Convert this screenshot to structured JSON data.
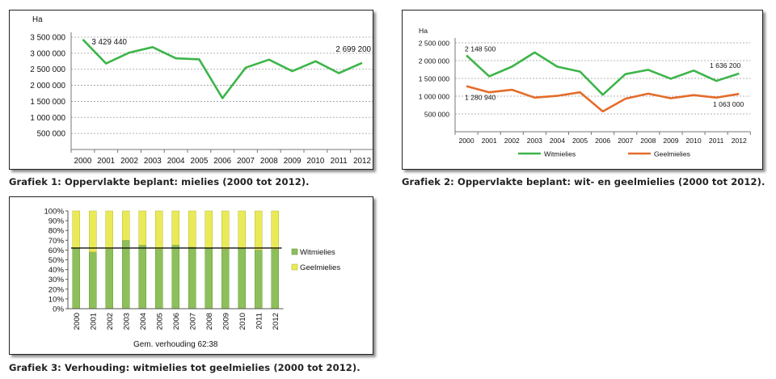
{
  "captions": {
    "c1": "Grafiek 1: Oppervlakte beplant: mielies (2000 tot 2012).",
    "c2": "Grafiek 2: Oppervlakte beplant: wit- en geelmielies (2000 tot 2012).",
    "c3": "Grafiek 3: Verhouding: witmielies tot geelmielies (2000 tot 2012)."
  },
  "colors": {
    "green": "#3db54a",
    "orange": "#e46c2a",
    "bar_green": "#8dbf5a",
    "bar_yellow": "#eaea58",
    "grid": "#9a9a9a"
  },
  "chart_data": [
    {
      "type": "line",
      "ylabel": "Ha",
      "x": [
        "2000",
        "2001",
        "2002",
        "2003",
        "2004",
        "2005",
        "2006",
        "2007",
        "2008",
        "2009",
        "2010",
        "2011",
        "2012"
      ],
      "ylim": [
        0,
        3500000
      ],
      "yticks": [
        "500 000",
        "1 000 000",
        "1 500 000",
        "2 000 000",
        "2 500 000",
        "3 000 000",
        "3 500 000"
      ],
      "series": [
        {
          "values": [
            3429440,
            2680000,
            3020000,
            3190000,
            2840000,
            2810000,
            1600000,
            2550000,
            2800000,
            2440000,
            2750000,
            2380000,
            2699200
          ]
        }
      ],
      "annotations": [
        {
          "text": "3 429 440",
          "index": 0
        },
        {
          "text": "2 699 200",
          "index": 12
        }
      ]
    },
    {
      "type": "line",
      "ylabel": "Ha",
      "x": [
        "2000",
        "2001",
        "2002",
        "2003",
        "2004",
        "2005",
        "2006",
        "2007",
        "2008",
        "2009",
        "2010",
        "2011",
        "2012"
      ],
      "ylim": [
        0,
        2500000
      ],
      "yticks": [
        "500 000",
        "1 000 000",
        "1 500 000",
        "2 000 000",
        "2 500 000"
      ],
      "legend": "bottom",
      "series": [
        {
          "name": "Witmielies",
          "values": [
            2148500,
            1560000,
            1830000,
            2230000,
            1830000,
            1690000,
            1040000,
            1620000,
            1740000,
            1490000,
            1720000,
            1430000,
            1636200
          ]
        },
        {
          "name": "Geelmielies",
          "values": [
            1280940,
            1110000,
            1180000,
            960000,
            1010000,
            1110000,
            570000,
            930000,
            1070000,
            940000,
            1030000,
            960000,
            1063000
          ]
        }
      ],
      "annotations": [
        {
          "text": "2 148 500",
          "series": 0,
          "index": 0
        },
        {
          "text": "1 636 200",
          "series": 0,
          "index": 12
        },
        {
          "text": "1 280 940",
          "series": 1,
          "index": 0
        },
        {
          "text": "1 063 000",
          "series": 1,
          "index": 12
        }
      ]
    },
    {
      "type": "bar",
      "stacked": true,
      "categories": [
        "2000",
        "2001",
        "2002",
        "2003",
        "2004",
        "2005",
        "2006",
        "2007",
        "2008",
        "2009",
        "2010",
        "2011",
        "2012"
      ],
      "ylim": [
        0,
        100
      ],
      "yticks": [
        "0%",
        "10%",
        "20%",
        "30%",
        "40%",
        "50%",
        "60%",
        "70%",
        "80%",
        "90%",
        "100%"
      ],
      "xlabel": "Gem. verhouding  62:38",
      "legend": "right",
      "series": [
        {
          "name": "Witmielies",
          "values": [
            62,
            58,
            61,
            70,
            65,
            61,
            65,
            63,
            62,
            61,
            62,
            60,
            61
          ]
        },
        {
          "name": "Geelmielies",
          "values": [
            38,
            42,
            39,
            30,
            35,
            39,
            35,
            37,
            38,
            39,
            38,
            40,
            39
          ]
        }
      ],
      "average_line": 62
    }
  ]
}
